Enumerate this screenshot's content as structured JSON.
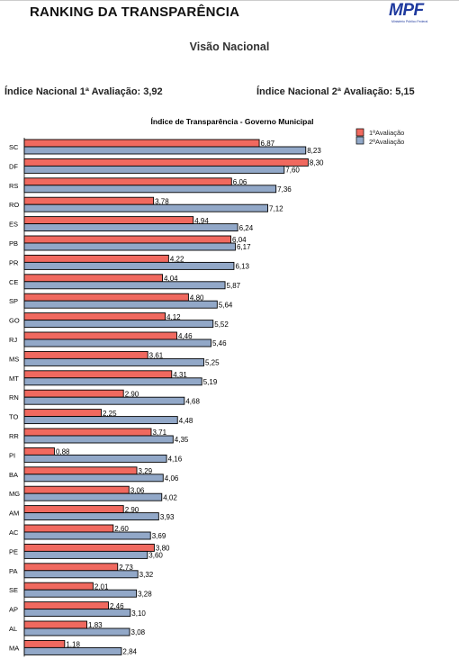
{
  "header": {
    "title": "RANKING DA TRANSPARÊNCIA",
    "logo_text": "MPF",
    "logo_subtext": "Ministério Público Federal"
  },
  "subtitle": "Visão Nacional",
  "index_1": "Índice Nacional 1ª Avaliação: 3,92",
  "index_2": "Índice Nacional 2ª Avaliação: 5,15",
  "colors": {
    "series1": "#f0695f",
    "series2": "#92a8c8"
  },
  "chart_data": {
    "type": "bar",
    "orientation": "horizontal",
    "title": "Índice de Transparência  - Governo Municipal",
    "categories": [
      "SC",
      "DF",
      "RS",
      "RO",
      "ES",
      "PB",
      "PR",
      "CE",
      "SP",
      "GO",
      "RJ",
      "MS",
      "MT",
      "RN",
      "TO",
      "RR",
      "PI",
      "BA",
      "MG",
      "AM",
      "AC",
      "PE",
      "PA",
      "SE",
      "AP",
      "AL",
      "MA"
    ],
    "series": [
      {
        "name": "1ªAvaliação",
        "values": [
          6.87,
          8.3,
          6.06,
          3.78,
          4.94,
          6.04,
          4.22,
          4.04,
          4.8,
          4.12,
          4.46,
          3.61,
          4.31,
          2.9,
          2.25,
          3.71,
          0.88,
          3.29,
          3.06,
          2.9,
          2.6,
          3.8,
          2.73,
          2.01,
          2.46,
          1.83,
          1.18
        ],
        "labels": [
          "6,87",
          "8,30",
          "6,06",
          "3,78",
          "4,94",
          "6,04",
          "4,22",
          "4,04",
          "4,80",
          "4,12",
          "4,46",
          "3,61",
          "4,31",
          "2,90",
          "2,25",
          "3,71",
          "0,88",
          "3,29",
          "3,06",
          "2,90",
          "2,60",
          "3,80",
          "2,73",
          "2,01",
          "2,46",
          "1,83",
          "1,18"
        ]
      },
      {
        "name": "2ªAvaliação",
        "values": [
          8.23,
          7.6,
          7.36,
          7.12,
          6.24,
          6.17,
          6.13,
          5.87,
          5.64,
          5.52,
          5.46,
          5.25,
          5.19,
          4.68,
          4.48,
          4.35,
          4.16,
          4.06,
          4.02,
          3.93,
          3.69,
          3.6,
          3.32,
          3.28,
          3.1,
          3.08,
          2.84
        ],
        "labels": [
          "8,23",
          "7,60",
          "7,36",
          "7,12",
          "6,24",
          "6,17",
          "6,13",
          "5,87",
          "5,64",
          "5,52",
          "5,46",
          "5,25",
          "5,19",
          "4,68",
          "4,48",
          "4,35",
          "4,16",
          "4,06",
          "4,02",
          "3,93",
          "3,69",
          "3,60",
          "3,32",
          "3,28",
          "3,10",
          "3,08",
          "2,84"
        ]
      }
    ],
    "legend_position": "top-right",
    "grid": false
  }
}
